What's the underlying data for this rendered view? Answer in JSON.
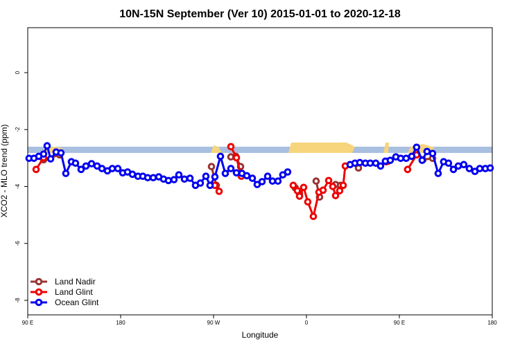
{
  "chart_data": {
    "type": "line",
    "title": "10N-15N September (Ver 10)   2015-01-01 to 2020-12-18",
    "x_label": "Longitude",
    "y_label": "XCO2 - MLO trend (ppm)",
    "xlim": [
      90,
      540
    ],
    "ylim": [
      -8.51,
      1.58
    ],
    "xticks": [
      {
        "value": 90,
        "label": "90 E"
      },
      180,
      {
        "value": 270,
        "label": "90 W"
      },
      {
        "value": 360,
        "label": "0"
      },
      {
        "value": 450,
        "label": "90 E"
      },
      {
        "value": 540,
        "label": "180"
      }
    ],
    "yticks": [
      0,
      -2,
      -4,
      -6,
      -8
    ],
    "legend": "bottomleft",
    "series": [
      {
        "name": "Land Nadir",
        "color": "#993333",
        "x": [
          105.4,
          120.9,
          200,
          268.0,
          272.7,
          280,
          286.8,
          291.5,
          296.2,
          320,
          349.2,
          353.3,
          360,
          369.4,
          372.7,
          380,
          388.2,
          392.9,
          400,
          410.4,
          440,
          472.8,
          482.2
        ],
        "values": [
          -3.06,
          -2.89,
          null,
          -3.3,
          -3.96,
          null,
          -2.96,
          -2.94,
          -3.3,
          null,
          -4.05,
          -4.25,
          null,
          -3.81,
          -4.37,
          null,
          -3.93,
          -3.96,
          null,
          -3.35,
          null,
          -3.06,
          -3.01
        ]
      },
      {
        "name": "Land Glint",
        "color": "#ee0000",
        "x": [
          98.1,
          105.4,
          200,
          271.3,
          275.4,
          280,
          286.8,
          292.2,
          296.9,
          320,
          347.2,
          351.2,
          353.3,
          357.3,
          361.3,
          366.7,
          372.1,
          376.1,
          381.5,
          385.5,
          388.2,
          392.2,
          395.6,
          397.6,
          420,
          437.2,
          439.2,
          450,
          458.0,
          466.7
        ],
        "values": [
          -3.4,
          -2.99,
          null,
          -3.96,
          -4.17,
          null,
          -2.6,
          -2.99,
          -3.64,
          null,
          -3.96,
          -4.15,
          -4.34,
          -4.03,
          -4.54,
          -5.05,
          -4.2,
          -4.13,
          -3.79,
          -4.0,
          -4.32,
          -4.15,
          -3.96,
          -3.28,
          null,
          -3.13,
          -3.11,
          null,
          -3.4,
          -2.89
        ]
      },
      {
        "name": "Ocean Glint",
        "color": "#0000ee",
        "x": [
          91.3,
          96.0,
          100.7,
          105.4,
          108.8,
          112.2,
          117.5,
          122.2,
          126.9,
          132.3,
          136.3,
          141.7,
          146.4,
          151.8,
          157.2,
          161.9,
          167.2,
          171.9,
          177.3,
          182.0,
          186.7,
          191.4,
          196.8,
          201.5,
          206.2,
          211.6,
          216.9,
          221.6,
          226.3,
          231.7,
          236.4,
          241.8,
          247.2,
          252.5,
          257.2,
          262.6,
          266.6,
          271.3,
          276.7,
          281.4,
          286.8,
          292.2,
          297.5,
          302.2,
          307.6,
          312.3,
          317.0,
          322.4,
          327.1,
          332.4,
          337.1,
          341.8,
          372.0,
          402.3,
          407.0,
          411.7,
          417.1,
          421.8,
          427.1,
          431.8,
          436.5,
          441.2,
          446.6,
          451.3,
          456.6,
          462.0,
          466.7,
          472.1,
          476.8,
          482.2,
          487.6,
          492.9,
          497.6,
          502.4,
          507.1,
          512.4,
          517.8,
          523.2,
          527.9,
          533.3,
          538.0
        ],
        "values": [
          -3.01,
          -3.01,
          -2.94,
          -2.86,
          -2.57,
          -3.03,
          -2.79,
          -2.82,
          -3.54,
          -3.13,
          -3.18,
          -3.4,
          -3.28,
          -3.2,
          -3.28,
          -3.37,
          -3.45,
          -3.37,
          -3.37,
          -3.52,
          -3.49,
          -3.57,
          -3.64,
          -3.64,
          -3.69,
          -3.69,
          -3.66,
          -3.74,
          -3.79,
          -3.76,
          -3.59,
          -3.74,
          -3.71,
          -3.96,
          -3.88,
          -3.64,
          -3.96,
          -3.66,
          -2.94,
          -3.54,
          -3.37,
          -3.52,
          -3.54,
          -3.62,
          -3.71,
          -3.93,
          -3.83,
          -3.64,
          -3.81,
          -3.81,
          -3.59,
          -3.49,
          null,
          -3.23,
          -3.18,
          -3.16,
          -3.18,
          -3.18,
          -3.18,
          -3.28,
          -3.11,
          -3.08,
          -2.96,
          -3.01,
          -3.01,
          -2.94,
          -2.62,
          -3.08,
          -2.77,
          -2.84,
          -3.54,
          -3.13,
          -3.18,
          -3.4,
          -3.28,
          -3.23,
          -3.37,
          -3.47,
          -3.37,
          -3.37,
          -3.35
        ]
      }
    ]
  }
}
